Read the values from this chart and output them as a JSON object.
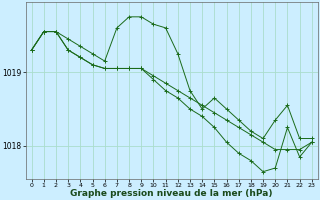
{
  "bg_color": "#cceeff",
  "grid_color": "#aaddcc",
  "line_color": "#1a6b1a",
  "marker_color": "#1a6b1a",
  "xlabel": "Graphe pression niveau de la mer (hPa)",
  "xlabel_fontsize": 6.5,
  "ylim": [
    1017.55,
    1019.95
  ],
  "xlim": [
    -0.5,
    23.5
  ],
  "yticks": [
    1018,
    1019
  ],
  "xticks": [
    0,
    1,
    2,
    3,
    4,
    5,
    6,
    7,
    8,
    9,
    10,
    11,
    12,
    13,
    14,
    15,
    16,
    17,
    18,
    19,
    20,
    21,
    22,
    23
  ],
  "series1": [
    1019.3,
    1019.55,
    1019.55,
    1019.45,
    1019.35,
    1019.25,
    1019.15,
    1019.6,
    1019.75,
    1019.75,
    1019.65,
    1019.6,
    1019.25,
    1018.75,
    1018.5,
    1018.65,
    1018.5,
    1018.35,
    1018.2,
    1018.1,
    1018.35,
    1018.55,
    1018.1,
    1018.1
  ],
  "series2": [
    1019.3,
    1019.55,
    1019.55,
    1019.3,
    1019.2,
    1019.1,
    1019.05,
    1019.05,
    1019.05,
    1019.05,
    1018.95,
    1018.85,
    1018.75,
    1018.65,
    1018.55,
    1018.45,
    1018.35,
    1018.25,
    1018.15,
    1018.05,
    1017.95,
    1017.95,
    1017.95,
    1018.05
  ],
  "series3": [
    1019.3,
    1019.55,
    1019.55,
    1019.3,
    1019.2,
    1019.1,
    1019.05,
    1019.05,
    1019.05,
    1019.05,
    1018.9,
    1018.75,
    1018.65,
    1018.5,
    1018.4,
    1018.25,
    1018.05,
    1017.9,
    1017.8,
    1017.65,
    1017.7,
    1018.25,
    1017.85,
    1018.05
  ]
}
